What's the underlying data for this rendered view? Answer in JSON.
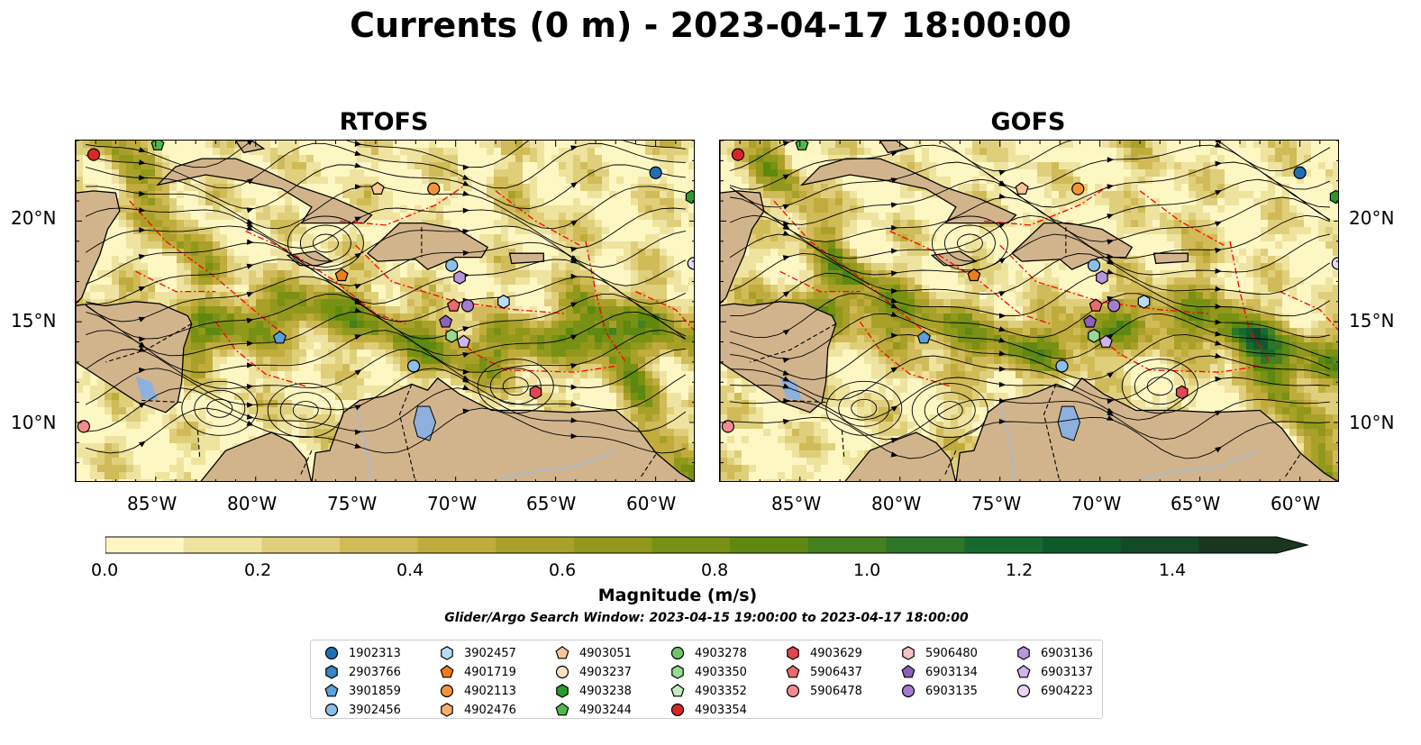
{
  "title": "Currents (0 m) - 2023-04-17 18:00:00",
  "panels": [
    {
      "id": "rtofs",
      "title": "RTOFS"
    },
    {
      "id": "gofs",
      "title": "GOFS"
    }
  ],
  "map": {
    "lon_range": [
      -89,
      -58
    ],
    "lat_range": [
      7,
      24
    ],
    "lon_ticks": [
      "85°W",
      "80°W",
      "75°W",
      "70°W",
      "65°W",
      "60°W"
    ],
    "lat_ticks": [
      "20°N",
      "15°N",
      "10°N"
    ],
    "colors": {
      "land": "#d2b48c",
      "coastline": "#000000",
      "eez_boundary": "#ff0000",
      "country_boundary": "#000000",
      "rivers": "#a4b8d8",
      "lakes": "#8eb0dc",
      "streamlines": "#000000"
    }
  },
  "colorbar": {
    "label": "Magnitude (m/s)",
    "tick_labels": [
      "0.0",
      "0.2",
      "0.4",
      "0.6",
      "0.8",
      "1.0",
      "1.2",
      "1.4"
    ],
    "levels": [
      0.0,
      0.1,
      0.2,
      0.3,
      0.4,
      0.5,
      0.6,
      0.7,
      0.8,
      0.9,
      1.0,
      1.1,
      1.2,
      1.3,
      1.4,
      1.5
    ],
    "colors": [
      "#fdf7c3",
      "#efe3a0",
      "#e0cf7a",
      "#d0bb58",
      "#bfac3c",
      "#a9a029",
      "#91981c",
      "#789013",
      "#5e880f",
      "#44801d",
      "#2b7627",
      "#176a2f",
      "#0f5a2d",
      "#154a28",
      "#1a3620"
    ],
    "extend": "max"
  },
  "search_window": "Glider/Argo Search Window: 2023-04-15 19:00:00 to 2023-04-17 18:00:00",
  "legend": [
    {
      "id": "1902313",
      "marker": "circle",
      "color": "#1f6fb4"
    },
    {
      "id": "2903766",
      "marker": "hexagon",
      "color": "#3a85c6"
    },
    {
      "id": "3901859",
      "marker": "pentagon",
      "color": "#5aa1da"
    },
    {
      "id": "3902456",
      "marker": "circle",
      "color": "#8cc0ea"
    },
    {
      "id": "3902457",
      "marker": "hexagon",
      "color": "#b9dcf4"
    },
    {
      "id": "4901719",
      "marker": "pentagon",
      "color": "#f07d17"
    },
    {
      "id": "4902113",
      "marker": "circle",
      "color": "#f5933a"
    },
    {
      "id": "4902476",
      "marker": "hexagon",
      "color": "#f9ae6b"
    },
    {
      "id": "4903051",
      "marker": "pentagon",
      "color": "#fbc596"
    },
    {
      "id": "4903237",
      "marker": "circle",
      "color": "#fde0c2"
    },
    {
      "id": "4903238",
      "marker": "hexagon",
      "color": "#2a9a2a"
    },
    {
      "id": "4903244",
      "marker": "pentagon",
      "color": "#4fb84a"
    },
    {
      "id": "4903278",
      "marker": "circle",
      "color": "#6cc56a"
    },
    {
      "id": "4903350",
      "marker": "hexagon",
      "color": "#97d990"
    },
    {
      "id": "4903352",
      "marker": "pentagon",
      "color": "#c5ecc0"
    },
    {
      "id": "4903354",
      "marker": "circle",
      "color": "#d62728"
    },
    {
      "id": "4903629",
      "marker": "hexagon",
      "color": "#e0474d"
    },
    {
      "id": "5906437",
      "marker": "pentagon",
      "color": "#eb6a6f"
    },
    {
      "id": "5906478",
      "marker": "circle",
      "color": "#f38b8f"
    },
    {
      "id": "5906480",
      "marker": "hexagon",
      "color": "#f9c2c2"
    },
    {
      "id": "6903134",
      "marker": "pentagon",
      "color": "#8e60bd"
    },
    {
      "id": "6903135",
      "marker": "circle",
      "color": "#a57cd0"
    },
    {
      "id": "6903136",
      "marker": "hexagon",
      "color": "#b995de"
    },
    {
      "id": "6903137",
      "marker": "pentagon",
      "color": "#d1b4ec"
    },
    {
      "id": "6904223",
      "marker": "circle",
      "color": "#e8d6f8"
    }
  ],
  "floats": {
    "rtofs": [
      {
        "id": "4903354",
        "lon": -88.1,
        "lat": 23.3
      },
      {
        "id": "4903244",
        "lon": -84.9,
        "lat": 23.8
      },
      {
        "id": "4903051",
        "lon": -73.9,
        "lat": 21.6
      },
      {
        "id": "4902113",
        "lon": -71.1,
        "lat": 21.6
      },
      {
        "id": "1902313",
        "lon": -60.0,
        "lat": 22.4
      },
      {
        "id": "4903238",
        "lon": -58.2,
        "lat": 21.2
      },
      {
        "id": "4901719",
        "lon": -75.7,
        "lat": 17.3
      },
      {
        "id": "3902456",
        "lon": -70.2,
        "lat": 17.8
      },
      {
        "id": "6903136",
        "lon": -69.8,
        "lat": 17.2
      },
      {
        "id": "6904223",
        "lon": -58.1,
        "lat": 17.9
      },
      {
        "id": "3902457",
        "lon": -67.6,
        "lat": 16.0
      },
      {
        "id": "5906437",
        "lon": -70.1,
        "lat": 15.8
      },
      {
        "id": "6903135",
        "lon": -69.4,
        "lat": 15.8
      },
      {
        "id": "6903134",
        "lon": -70.5,
        "lat": 15.0
      },
      {
        "id": "4903350",
        "lon": -70.2,
        "lat": 14.3
      },
      {
        "id": "6903137",
        "lon": -69.6,
        "lat": 14.0
      },
      {
        "id": "3901859",
        "lon": -78.8,
        "lat": 14.2
      },
      {
        "id": "3902456",
        "lon": -72.1,
        "lat": 12.8
      },
      {
        "id": "4903629",
        "lon": -66.0,
        "lat": 11.5
      },
      {
        "id": "5906478",
        "lon": -88.6,
        "lat": 9.8
      }
    ],
    "gofs": [
      {
        "id": "4903354",
        "lon": -88.1,
        "lat": 23.3
      },
      {
        "id": "4903244",
        "lon": -84.9,
        "lat": 23.8
      },
      {
        "id": "4903051",
        "lon": -73.9,
        "lat": 21.6
      },
      {
        "id": "4902113",
        "lon": -71.1,
        "lat": 21.6
      },
      {
        "id": "1902313",
        "lon": -60.0,
        "lat": 22.4
      },
      {
        "id": "4903238",
        "lon": -58.2,
        "lat": 21.2
      },
      {
        "id": "4901719",
        "lon": -76.3,
        "lat": 17.3
      },
      {
        "id": "3902456",
        "lon": -70.3,
        "lat": 17.8
      },
      {
        "id": "6903136",
        "lon": -69.9,
        "lat": 17.2
      },
      {
        "id": "6904223",
        "lon": -58.1,
        "lat": 17.9
      },
      {
        "id": "3902457",
        "lon": -67.8,
        "lat": 16.0
      },
      {
        "id": "5906437",
        "lon": -70.2,
        "lat": 15.8
      },
      {
        "id": "6903135",
        "lon": -69.3,
        "lat": 15.8
      },
      {
        "id": "6903134",
        "lon": -70.5,
        "lat": 15.0
      },
      {
        "id": "4903350",
        "lon": -70.3,
        "lat": 14.3
      },
      {
        "id": "6903137",
        "lon": -69.7,
        "lat": 14.0
      },
      {
        "id": "3901859",
        "lon": -78.8,
        "lat": 14.2
      },
      {
        "id": "3902456",
        "lon": -71.9,
        "lat": 12.8
      },
      {
        "id": "4903629",
        "lon": -65.9,
        "lat": 11.5
      },
      {
        "id": "5906478",
        "lon": -88.6,
        "lat": 9.8
      }
    ]
  }
}
